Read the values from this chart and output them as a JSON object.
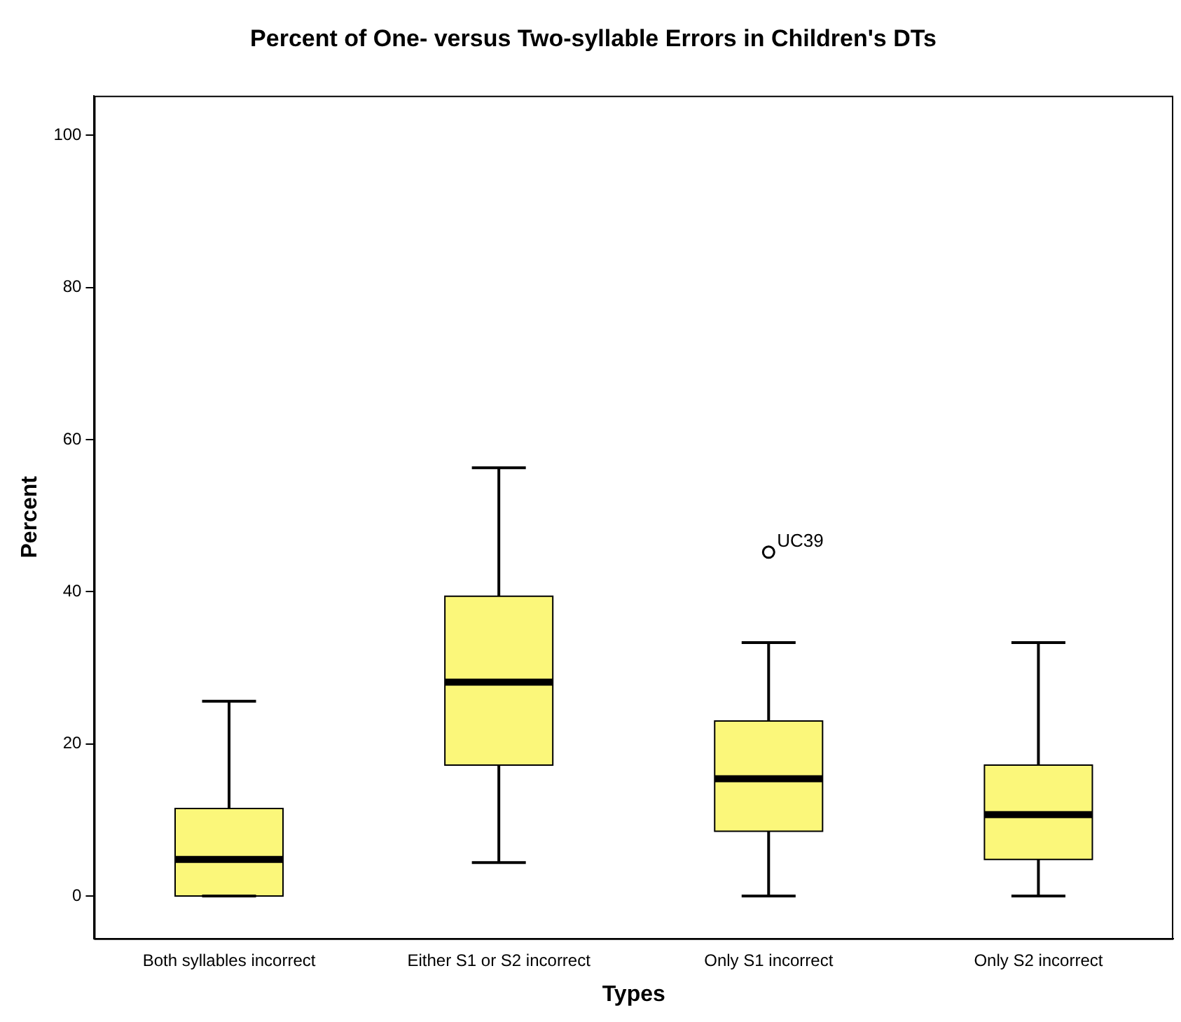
{
  "chart_data": {
    "type": "box",
    "title": "Percent of One- versus Two-syllable Errors in Children's DTs",
    "xlabel": "Types",
    "ylabel": "Percent",
    "categories": [
      "Both syllables incorrect",
      "Either S1 or S2 incorrect",
      "Only S1 incorrect",
      "Only S2 incorrect"
    ],
    "color": "#fbf77a",
    "boxes": [
      {
        "low": 0,
        "q1": 0,
        "median": 4.8,
        "q3": 11.5,
        "high": 25.6
      },
      {
        "low": 4.4,
        "q1": 17.2,
        "median": 28.1,
        "q3": 39.4,
        "high": 56.3
      },
      {
        "low": 0,
        "q1": 8.5,
        "median": 15.4,
        "q3": 23,
        "high": 33.3,
        "outliers": [
          45.2
        ]
      },
      {
        "low": 0,
        "q1": 4.8,
        "median": 10.7,
        "q3": 17.2,
        "high": 33.3
      }
    ],
    "ylim": [
      -5.6,
      105.2
    ],
    "yticks": [
      0,
      20,
      40,
      60,
      80,
      100
    ],
    "grid": false,
    "legend": false,
    "marker": "circle",
    "annotations": [
      "UC39"
    ]
  }
}
